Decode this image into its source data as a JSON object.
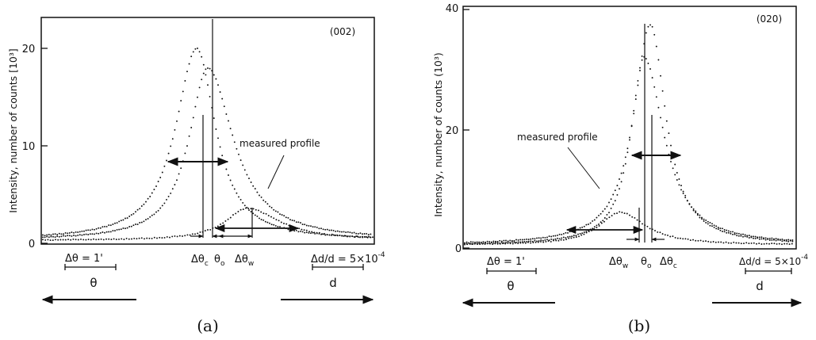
{
  "chart_data": [
    {
      "type": "scatter",
      "panel": "(a)",
      "reflection": "(002)",
      "ylabel": "Intensity, number of counts [10³]",
      "ylim": [
        0,
        23
      ],
      "y_ticks": [
        "0",
        "10",
        "20"
      ],
      "series": [
        {
          "name": "measured profile",
          "peak": 20.0
        },
        {
          "name": "",
          "peak": 18.0
        },
        {
          "name": "",
          "peak": 3.6
        }
      ],
      "annotations": {
        "measured_profile": "measured profile",
        "delta_theta_c": "Δθ",
        "delta_theta_c_sub": "c",
        "theta_0": "θ",
        "theta_0_sub": "o",
        "delta_theta_w": "Δθ",
        "delta_theta_w_sub": "w"
      },
      "scale_theta": "Δθ = 1'",
      "scale_d": "Δd/d = 5×10",
      "scale_d_exp": "-4",
      "axis_theta": "θ",
      "axis_d": "d",
      "caption": "(a)"
    },
    {
      "type": "scatter",
      "panel": "(b)",
      "reflection": "(020)",
      "ylabel": "Intensity, number of counts (10³)",
      "ylim": [
        0,
        40
      ],
      "y_ticks": [
        "0",
        "20",
        "40"
      ],
      "series": [
        {
          "name": "measured profile",
          "peak": 37.5
        },
        {
          "name": "",
          "peak": 32.0
        },
        {
          "name": "",
          "peak": 6.0
        }
      ],
      "annotations": {
        "measured_profile": "measured profile",
        "delta_theta_w": "Δθ",
        "delta_theta_w_sub": "w",
        "theta_0": "θ",
        "theta_0_sub": "o",
        "delta_theta_c": "Δθ",
        "delta_theta_c_sub": "c"
      },
      "scale_theta": "Δθ = 1'",
      "scale_d": "Δd/d = 5×10",
      "scale_d_exp": "-4",
      "axis_theta": "θ",
      "axis_d": "d",
      "caption": "(b)"
    }
  ]
}
